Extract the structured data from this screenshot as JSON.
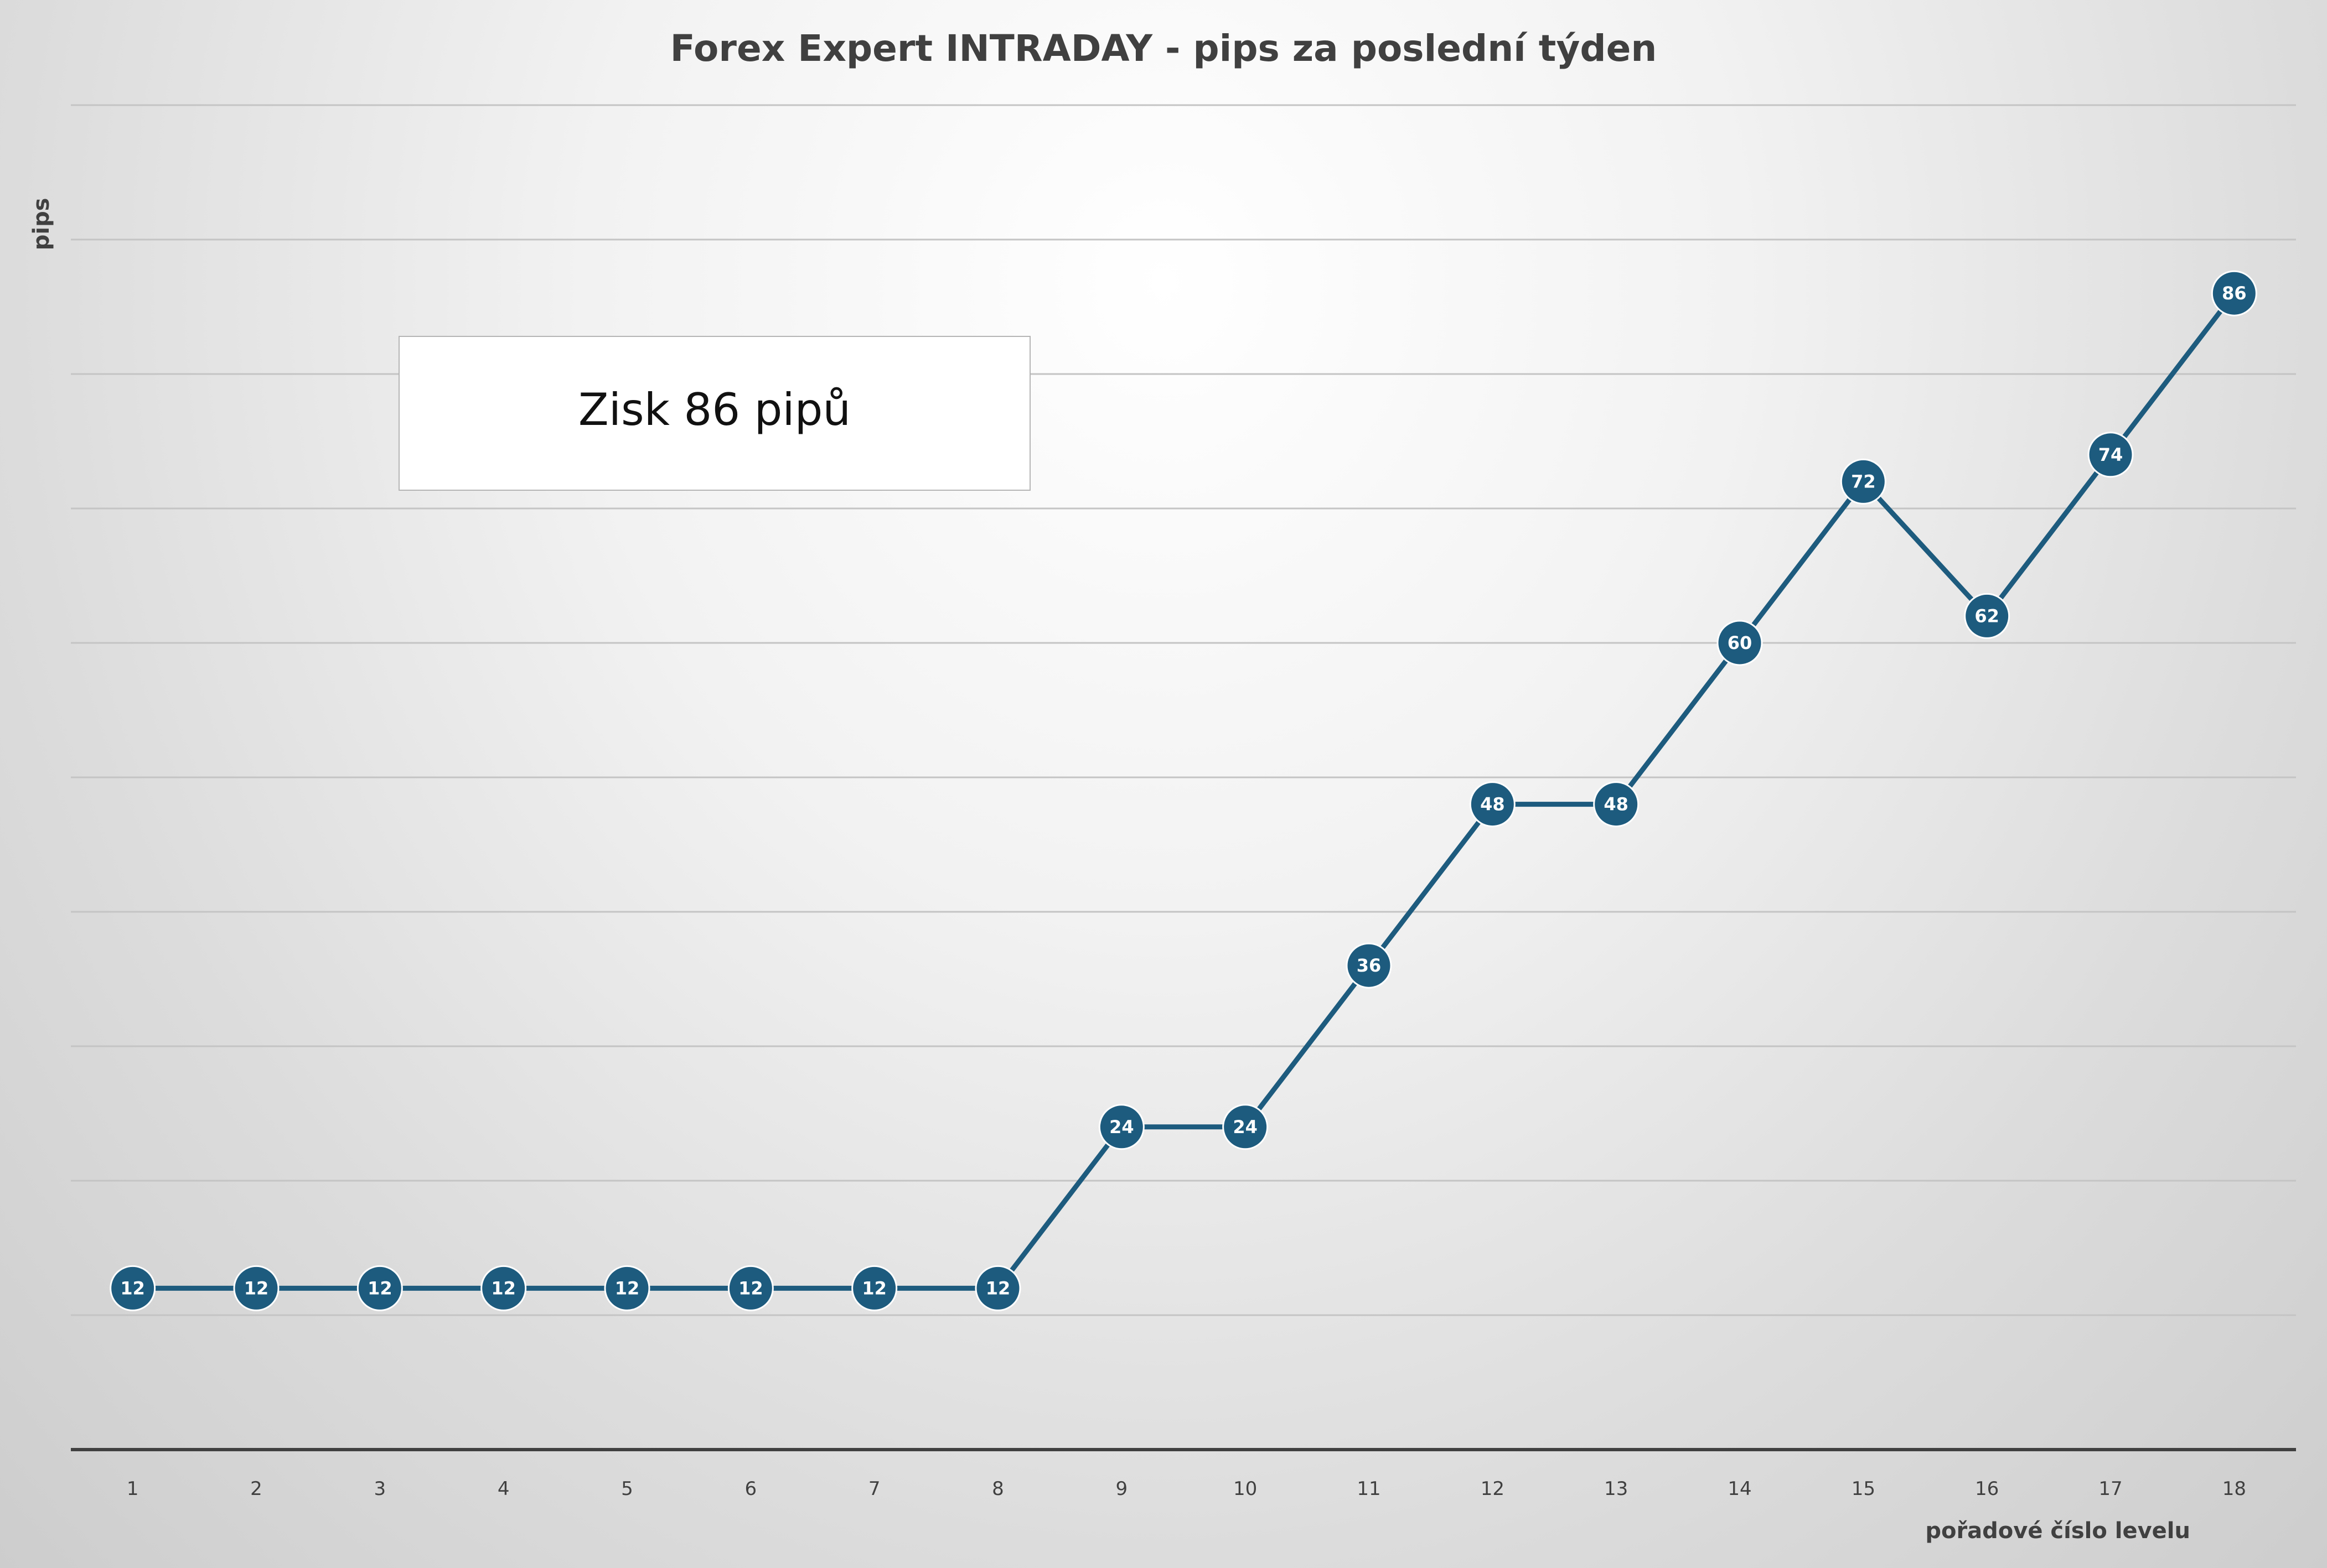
{
  "chart_data": {
    "type": "line",
    "title": "Forex Expert INTRADAY - pips za poslední týden",
    "xlabel": "pořadové číslo levelu",
    "ylabel": "pips",
    "x": [
      "1",
      "2",
      "3",
      "4",
      "5",
      "6",
      "7",
      "8",
      "9",
      "10",
      "11",
      "12",
      "13",
      "14",
      "15",
      "16",
      "17",
      "18"
    ],
    "series": [
      {
        "values": [
          12,
          12,
          12,
          12,
          12,
          12,
          12,
          12,
          24,
          24,
          36,
          48,
          48,
          60,
          72,
          62,
          74,
          86
        ]
      }
    ],
    "ylim": [
      0,
      100
    ],
    "grid": true,
    "y_tick_labels_visible": false,
    "data_labels": true,
    "legend": "none",
    "annotation": "Zisk 86 pipů",
    "colors": {
      "series": "#1d5b7e",
      "grid": "#c4c4c4",
      "axis": "#404040"
    }
  }
}
